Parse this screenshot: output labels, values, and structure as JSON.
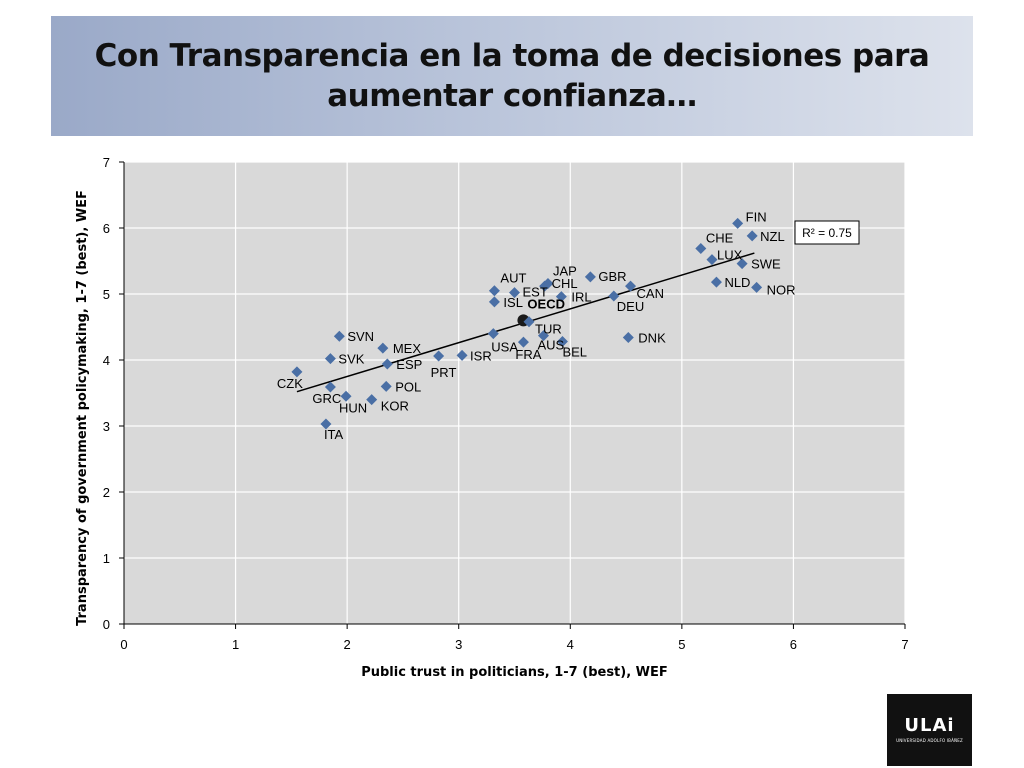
{
  "slide": {
    "title": "Con Transparencia en la toma de decisiones para aumentar confianza…",
    "logo": {
      "mark": "ULAi",
      "subtitle": "UNIVERSIDAD ADOLFO IBÁÑEZ"
    }
  },
  "colors": {
    "marker": "#4a6fa5",
    "plot_bg": "#d9d9d9",
    "grid": "#ffffff",
    "trend": "#000000"
  },
  "chart_data": {
    "type": "scatter",
    "title": "",
    "xlabel": "Public trust in politicians, 1-7 (best), WEF",
    "ylabel": "Transparency of government policymaking, 1-7 (best), WEF",
    "xlim": [
      0,
      7
    ],
    "ylim": [
      0,
      7
    ],
    "xticks": [
      0,
      1,
      2,
      3,
      4,
      5,
      6,
      7
    ],
    "yticks": [
      0,
      1,
      2,
      3,
      4,
      5,
      6,
      7
    ],
    "grid": true,
    "annotation": "R² = 0.75",
    "trendline": {
      "x": [
        1.55,
        5.65
      ],
      "y": [
        3.52,
        5.62
      ]
    },
    "points": [
      {
        "label": "FIN",
        "x": 5.5,
        "y": 6.07
      },
      {
        "label": "NZL",
        "x": 5.63,
        "y": 5.88
      },
      {
        "label": "CHE",
        "x": 5.17,
        "y": 5.69
      },
      {
        "label": "LUX",
        "x": 5.27,
        "y": 5.52
      },
      {
        "label": "SWE",
        "x": 5.54,
        "y": 5.46
      },
      {
        "label": "NLD",
        "x": 5.31,
        "y": 5.18
      },
      {
        "label": "NOR",
        "x": 5.67,
        "y": 5.1
      },
      {
        "label": "DNK",
        "x": 4.52,
        "y": 4.34
      },
      {
        "label": "CAN",
        "x": 4.54,
        "y": 5.12
      },
      {
        "label": "DEU",
        "x": 4.39,
        "y": 4.97
      },
      {
        "label": "GBR",
        "x": 4.18,
        "y": 5.26
      },
      {
        "label": "JAP",
        "x": 3.8,
        "y": 5.16
      },
      {
        "label": "CHL",
        "x": 3.77,
        "y": 5.12
      },
      {
        "label": "IRL",
        "x": 3.92,
        "y": 4.96
      },
      {
        "label": "AUT",
        "x": 3.32,
        "y": 5.05
      },
      {
        "label": "EST",
        "x": 3.5,
        "y": 5.02
      },
      {
        "label": "ISL",
        "x": 3.32,
        "y": 4.88
      },
      {
        "label": "OECD",
        "x": 3.58,
        "y": 4.6
      },
      {
        "label": "TUR",
        "x": 3.63,
        "y": 4.58
      },
      {
        "label": "USA",
        "x": 3.31,
        "y": 4.4
      },
      {
        "label": "AUS",
        "x": 3.76,
        "y": 4.37
      },
      {
        "label": "FRA",
        "x": 3.58,
        "y": 4.27
      },
      {
        "label": "BEL",
        "x": 3.93,
        "y": 4.28
      },
      {
        "label": "ISR",
        "x": 3.03,
        "y": 4.07
      },
      {
        "label": "PRT",
        "x": 2.82,
        "y": 4.06
      },
      {
        "label": "SVN",
        "x": 1.93,
        "y": 4.36
      },
      {
        "label": "MEX",
        "x": 2.32,
        "y": 4.18
      },
      {
        "label": "SVK",
        "x": 1.85,
        "y": 4.02
      },
      {
        "label": "ESP",
        "x": 2.36,
        "y": 3.94
      },
      {
        "label": "CZK",
        "x": 1.55,
        "y": 3.82
      },
      {
        "label": "GRC",
        "x": 1.85,
        "y": 3.59
      },
      {
        "label": "POL",
        "x": 2.35,
        "y": 3.6
      },
      {
        "label": "HUN",
        "x": 1.99,
        "y": 3.45
      },
      {
        "label": "KOR",
        "x": 2.22,
        "y": 3.4
      },
      {
        "label": "ITA",
        "x": 1.81,
        "y": 3.03
      }
    ]
  }
}
